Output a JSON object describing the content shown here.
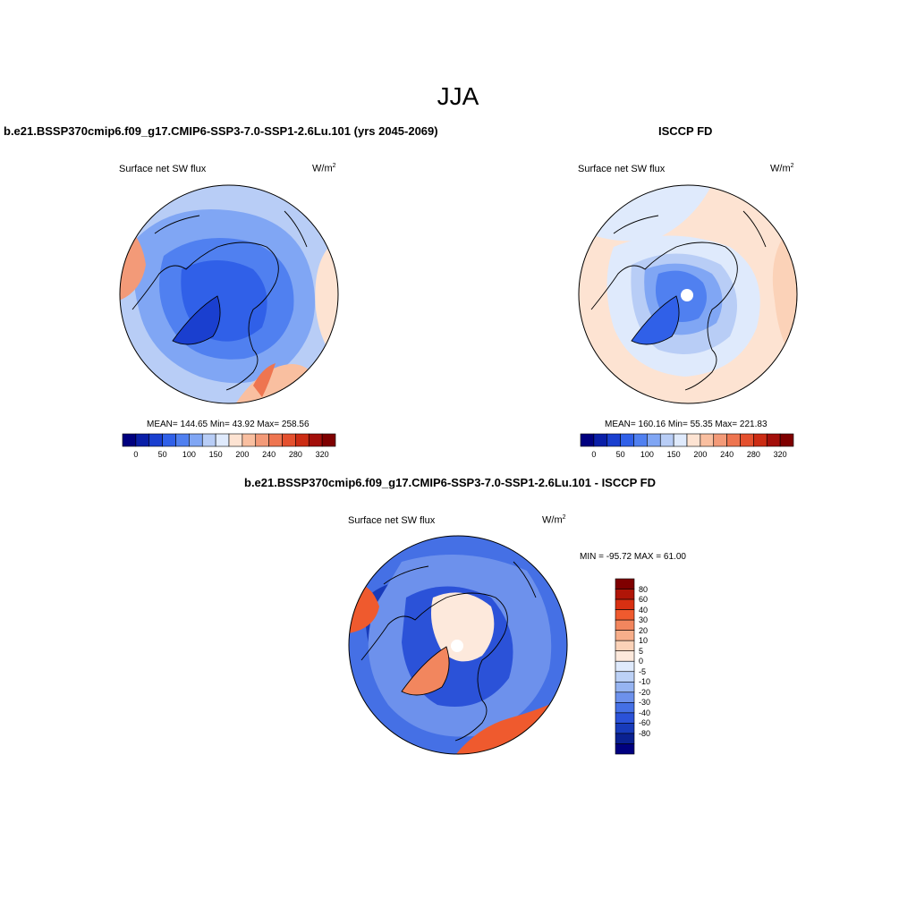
{
  "figure": {
    "main_title": "JJA"
  },
  "panels": [
    {
      "title": "b.e21.BSSP370cmip6.f09_g17.CMIP6-SSP3-7.0-SSP1-2.6Lu.101 (yrs 2045-2069)",
      "left_label": "Surface net SW flux",
      "units": "W/m",
      "units_exp": "2",
      "stats": "MEAN= 144.65  Min=  43.92  Max= 258.56"
    },
    {
      "title": "ISCCP FD",
      "left_label": "Surface net SW flux",
      "units": "W/m",
      "units_exp": "2",
      "stats": "MEAN= 160.16  Min=  55.35  Max= 221.83"
    },
    {
      "title": "b.e21.BSSP370cmip6.f09_g17.CMIP6-SSP3-7.0-SSP1-2.6Lu.101 - ISCCP FD",
      "left_label": "Surface net SW flux",
      "units": "W/m",
      "units_exp": "2",
      "stats": "MIN = -95.72 MAX =  61.00"
    }
  ],
  "colorbar_horizontal": {
    "colors": [
      "#00007f",
      "#0a1fa8",
      "#1a3fcf",
      "#3060e8",
      "#5080f0",
      "#80a6f4",
      "#b8cdf6",
      "#dfeafc",
      "#fde3d2",
      "#f9bfa0",
      "#f39a78",
      "#ee7550",
      "#e4502e",
      "#cc2c14",
      "#a30f0a",
      "#7f0000"
    ],
    "tick_labels": [
      "0",
      "50",
      "100",
      "150",
      "200",
      "240",
      "280",
      "320"
    ]
  },
  "colorbar_vertical": {
    "colors": [
      "#7f0000",
      "#b01508",
      "#d83012",
      "#ef5a2e",
      "#f2865e",
      "#f7ae8a",
      "#fbd2b8",
      "#fde9dc",
      "#dfeafc",
      "#bcd1f6",
      "#96b4f1",
      "#6d91ec",
      "#4570e5",
      "#2b52d8",
      "#183bba",
      "#0a2191",
      "#00007f"
    ],
    "tick_labels": [
      "80",
      "60",
      "40",
      "30",
      "20",
      "10",
      "5",
      "0",
      "-5",
      "-10",
      "-20",
      "-30",
      "-40",
      "-60",
      "-80"
    ]
  },
  "legend_ranges": {
    "absolute_min": 0,
    "absolute_max": 320,
    "difference_min": -80,
    "difference_max": 80
  }
}
